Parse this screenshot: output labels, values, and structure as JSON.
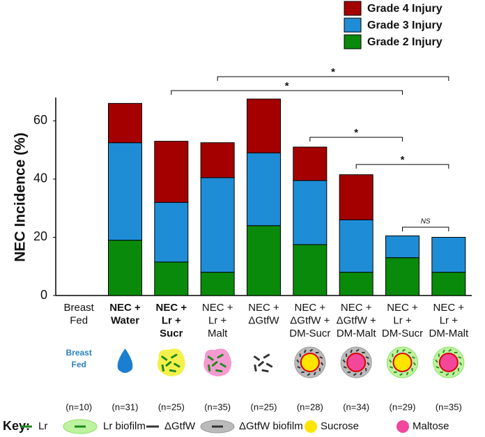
{
  "chart_data": {
    "type": "stacked-bar",
    "ylabel": "NEC Incidence (%)",
    "categories": [
      [
        "Breast",
        "Fed"
      ],
      [
        "NEC +",
        "Water"
      ],
      [
        "NEC +",
        "Lr +",
        "Sucr"
      ],
      [
        "NEC +",
        "Lr +",
        "Malt"
      ],
      [
        "NEC +",
        "ΔGtfW"
      ],
      [
        "NEC +",
        "ΔGtfW +",
        "DM-Sucr"
      ],
      [
        "NEC +",
        "ΔGtfW +",
        "DM-Malt"
      ],
      [
        "NEC +",
        "Lr +",
        "DM-Sucr"
      ],
      [
        "NEC +",
        "Lr +",
        "DM-Malt"
      ]
    ],
    "series": [
      {
        "name": "Grade 2 Injury",
        "color": "#0a8a0a",
        "values": [
          0,
          19,
          11.5,
          8,
          24,
          17.5,
          8,
          13,
          8
        ]
      },
      {
        "name": "Grade 3 Injury",
        "color": "#1f8dd6",
        "values": [
          0,
          33.5,
          20.5,
          32.5,
          25,
          22,
          18,
          7.5,
          12
        ]
      },
      {
        "name": "Grade 4 Injury",
        "color": "#a50000",
        "values": [
          0,
          13.5,
          21,
          12,
          18.5,
          11.5,
          15.5,
          0,
          0
        ]
      }
    ],
    "ylim": [
      0,
      68
    ],
    "yticks": [
      0,
      20,
      40,
      60
    ],
    "annotations": [
      "*",
      "*",
      "*",
      "*",
      "NS"
    ],
    "icon_text": [
      "Breast",
      "Fed"
    ],
    "sample_sizes": [
      "(n=10)",
      "(n=31)",
      "(n=25)",
      "(n=35)",
      "(n=25)",
      "(n=28)",
      "(n=34)",
      "(n=29)",
      "(n=35)"
    ],
    "key_title": "Key:",
    "key_items": [
      "Lr",
      "Lr biofilm",
      "ΔGtfW",
      "ΔGtfW biofilm",
      "Sucrose",
      "Maltose"
    ]
  }
}
